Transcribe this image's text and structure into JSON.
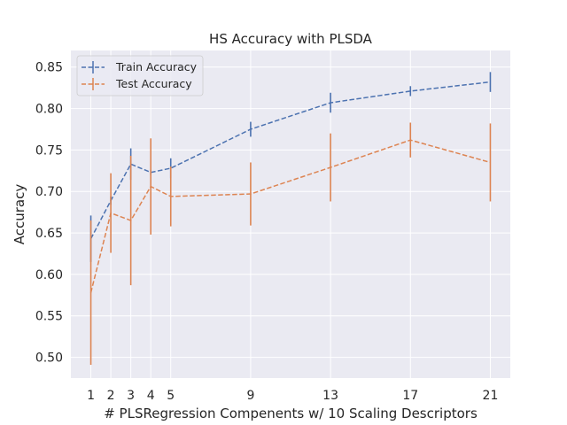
{
  "chart_data": {
    "type": "line",
    "title": "HS Accuracy with PLSDA",
    "xlabel": "# PLSRegression Compenents w/ 10 Scaling Descriptors",
    "ylabel": "Accuracy",
    "x": [
      1,
      2,
      3,
      4,
      5,
      9,
      13,
      17,
      21
    ],
    "xlim": [
      0,
      22
    ],
    "ylim": [
      0.475,
      0.87
    ],
    "yticks": [
      0.5,
      0.55,
      0.6,
      0.65,
      0.7,
      0.75,
      0.8,
      0.85
    ],
    "ytick_labels": [
      "0.50",
      "0.55",
      "0.60",
      "0.65",
      "0.70",
      "0.75",
      "0.80",
      "0.85"
    ],
    "grid": true,
    "legend_position": "top-left",
    "series": [
      {
        "name": "Train Accuracy",
        "color": "#4c72b0",
        "values": [
          0.643,
          0.689,
          0.733,
          0.723,
          0.728,
          0.775,
          0.807,
          0.821,
          0.832
        ],
        "errors": [
          0.028,
          0.005,
          0.019,
          0.003,
          0.012,
          0.009,
          0.012,
          0.006,
          0.012
        ]
      },
      {
        "name": "Test Accuracy",
        "color": "#dd8452",
        "values": [
          0.578,
          0.674,
          0.665,
          0.706,
          0.694,
          0.697,
          0.729,
          0.762,
          0.735
        ],
        "errors": [
          0.087,
          0.048,
          0.078,
          0.058,
          0.036,
          0.038,
          0.041,
          0.021,
          0.047
        ]
      }
    ]
  }
}
